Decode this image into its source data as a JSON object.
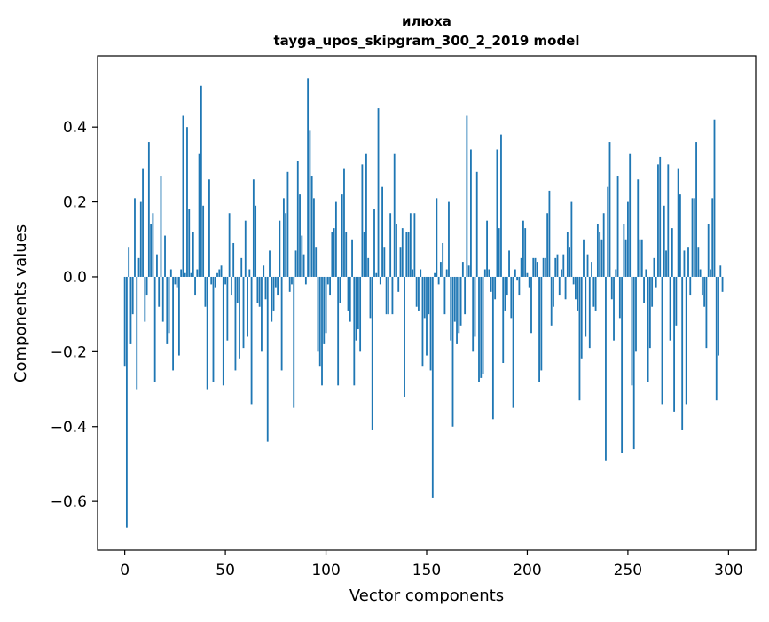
{
  "chart_data": {
    "type": "bar",
    "title": "илюха",
    "subtitle": "tayga_upos_skipgram_300_2_2019 model",
    "xlabel": "Vector components",
    "ylabel": "Components values",
    "xlim": [
      -13.5,
      313.5
    ],
    "ylim": [
      -0.73,
      0.59
    ],
    "x_ticks": [
      0,
      50,
      100,
      150,
      200,
      250,
      300
    ],
    "y_ticks": [
      -0.6,
      -0.4,
      -0.2,
      0.0,
      0.2,
      0.4
    ],
    "y_tick_labels": [
      "−0.6",
      "−0.4",
      "−0.2",
      "0.0",
      "0.2",
      "0.4"
    ],
    "grid": false,
    "bar_color": "#1f77b4",
    "values": [
      -0.24,
      -0.67,
      0.08,
      -0.18,
      -0.1,
      0.21,
      -0.3,
      0.05,
      0.2,
      0.29,
      -0.12,
      -0.05,
      0.36,
      0.14,
      0.17,
      -0.28,
      0.06,
      -0.08,
      0.27,
      -0.12,
      0.11,
      -0.18,
      -0.15,
      0.02,
      -0.25,
      -0.02,
      -0.03,
      -0.21,
      0.02,
      0.43,
      0.01,
      0.4,
      0.18,
      0.01,
      0.12,
      -0.05,
      0.02,
      0.33,
      0.51,
      0.19,
      -0.08,
      -0.3,
      0.26,
      -0.02,
      -0.28,
      -0.03,
      0.01,
      0.02,
      0.03,
      -0.29,
      -0.02,
      -0.17,
      0.17,
      -0.05,
      0.09,
      -0.25,
      -0.07,
      -0.22,
      0.05,
      -0.19,
      0.15,
      -0.16,
      0.02,
      -0.34,
      0.26,
      0.19,
      -0.07,
      -0.08,
      -0.2,
      0.03,
      -0.06,
      -0.44,
      0.07,
      -0.12,
      -0.09,
      -0.03,
      -0.05,
      0.15,
      -0.25,
      0.21,
      0.17,
      0.28,
      -0.04,
      -0.02,
      -0.35,
      0.07,
      0.31,
      0.22,
      0.11,
      0.06,
      -0.02,
      0.53,
      0.39,
      0.27,
      0.21,
      0.08,
      -0.2,
      -0.24,
      -0.29,
      -0.18,
      -0.15,
      -0.02,
      -0.05,
      0.12,
      0.13,
      0.2,
      -0.29,
      -0.07,
      0.22,
      0.29,
      0.12,
      -0.09,
      -0.12,
      0.1,
      -0.29,
      -0.17,
      -0.14,
      -0.2,
      0.3,
      0.12,
      0.33,
      0.05,
      -0.11,
      -0.41,
      0.18,
      0.01,
      0.45,
      -0.02,
      0.24,
      0.08,
      -0.1,
      -0.1,
      0.17,
      -0.1,
      0.33,
      0.14,
      -0.04,
      0.08,
      0.13,
      -0.32,
      0.12,
      0.12,
      0.17,
      0.02,
      0.17,
      -0.08,
      -0.09,
      0.02,
      -0.24,
      -0.11,
      -0.21,
      -0.1,
      -0.25,
      -0.59,
      0.01,
      0.21,
      -0.02,
      0.04,
      0.09,
      -0.1,
      0.02,
      0.2,
      -0.17,
      -0.4,
      -0.12,
      -0.18,
      -0.15,
      -0.13,
      0.04,
      -0.1,
      0.43,
      0.03,
      0.34,
      -0.2,
      -0.16,
      0.28,
      -0.28,
      -0.27,
      -0.26,
      0.02,
      0.15,
      0.02,
      -0.04,
      -0.38,
      -0.06,
      0.34,
      0.13,
      0.38,
      -0.23,
      -0.09,
      -0.05,
      0.07,
      -0.11,
      -0.35,
      0.02,
      -0.01,
      -0.05,
      0.05,
      0.15,
      0.13,
      0.01,
      -0.03,
      -0.15,
      0.05,
      0.05,
      0.04,
      -0.28,
      -0.25,
      0.05,
      0.05,
      0.17,
      0.23,
      -0.13,
      -0.08,
      0.05,
      0.06,
      -0.05,
      0.02,
      0.06,
      -0.06,
      0.12,
      0.08,
      0.2,
      -0.02,
      -0.06,
      -0.09,
      -0.33,
      -0.22,
      0.1,
      -0.16,
      0.06,
      -0.19,
      0.04,
      -0.08,
      -0.09,
      0.14,
      0.12,
      0.1,
      0.17,
      -0.49,
      0.24,
      0.36,
      -0.06,
      -0.17,
      0.02,
      0.27,
      -0.11,
      -0.47,
      0.14,
      0.1,
      0.2,
      0.33,
      -0.29,
      -0.46,
      -0.2,
      0.26,
      0.1,
      0.1,
      -0.07,
      0.02,
      -0.28,
      -0.19,
      -0.08,
      0.05,
      -0.03,
      0.3,
      0.32,
      -0.34,
      0.19,
      0.07,
      0.3,
      -0.17,
      0.13,
      -0.36,
      -0.13,
      0.29,
      0.22,
      -0.41,
      0.07,
      -0.34,
      0.08,
      -0.05,
      0.21,
      0.21,
      0.36,
      0.08,
      0.02,
      -0.05,
      -0.08,
      -0.19,
      0.14,
      0.02,
      0.21,
      0.42,
      -0.33,
      -0.21,
      0.03,
      -0.04
    ]
  }
}
